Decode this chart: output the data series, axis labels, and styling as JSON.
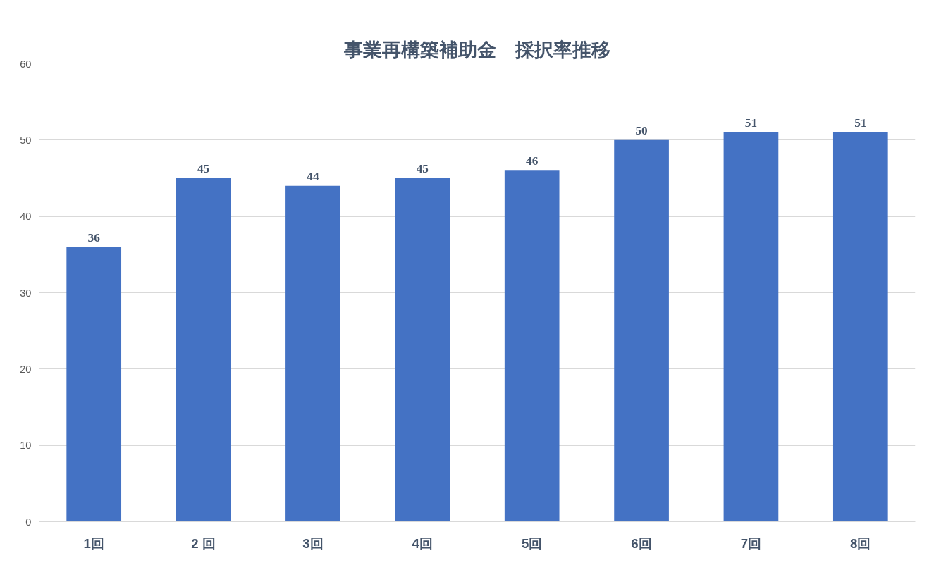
{
  "chart_data": {
    "type": "bar",
    "title": "事業再構築補助金　採択率推移",
    "categories": [
      "1回",
      "2 回",
      "3回",
      "4回",
      "5回",
      "6回",
      "7回",
      "8回"
    ],
    "values": [
      36,
      45,
      44,
      45,
      46,
      50,
      51,
      51
    ],
    "color": "#4472c4",
    "ylim": [
      0,
      60
    ],
    "yticks": [
      0,
      10,
      20,
      30,
      40,
      50,
      60
    ],
    "grid": "y",
    "data_labels": true
  }
}
